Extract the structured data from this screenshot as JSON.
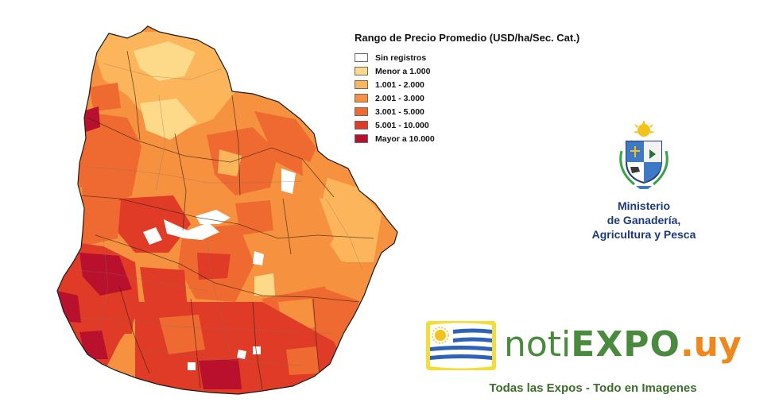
{
  "map": {
    "title": "Rango de Precio Promedio (USD/ha/Sec. Cat.)",
    "legend": [
      {
        "label": "Sin registros",
        "color": "#ffffff"
      },
      {
        "label": "Menor a 1.000",
        "color": "#fdd98a"
      },
      {
        "label": "1.001 - 2.000",
        "color": "#fcb55a"
      },
      {
        "label": "2.001 - 3.000",
        "color": "#f6923f"
      },
      {
        "label": "3.001 - 5.000",
        "color": "#ee6a31"
      },
      {
        "label": "5.001 - 10.000",
        "color": "#df3b26"
      },
      {
        "label": "Mayor a 10.000",
        "color": "#b8102d"
      }
    ]
  },
  "ministry": {
    "line1": "Ministerio",
    "line2": "de Ganadería,",
    "line3": "Agricultura y Pesca",
    "color": "#1d3a78"
  },
  "brand": {
    "noti": "noti",
    "expo": "EXPO",
    "uy": ".uy",
    "tagline": "Todas las Expos - Todo en Imagenes"
  }
}
